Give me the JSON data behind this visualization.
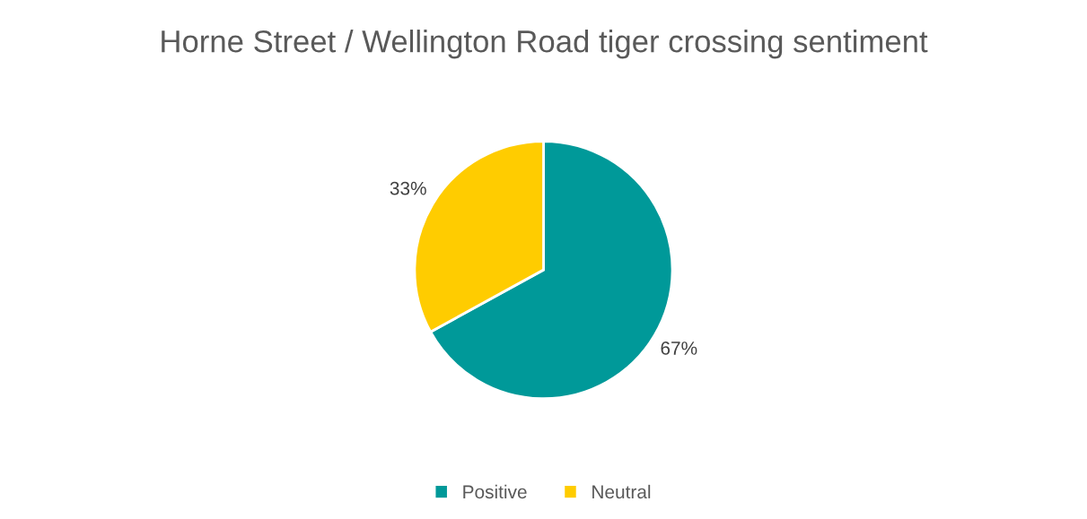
{
  "chart_data": {
    "type": "pie",
    "title": "Horne Street / Wellington Road tiger crossing sentiment",
    "categories": [
      "Positive",
      "Neutral"
    ],
    "values": [
      67,
      33
    ],
    "colors": [
      "#009999",
      "#ffcc00"
    ],
    "value_labels": [
      "67%",
      "33%"
    ],
    "legend": "bottom"
  }
}
